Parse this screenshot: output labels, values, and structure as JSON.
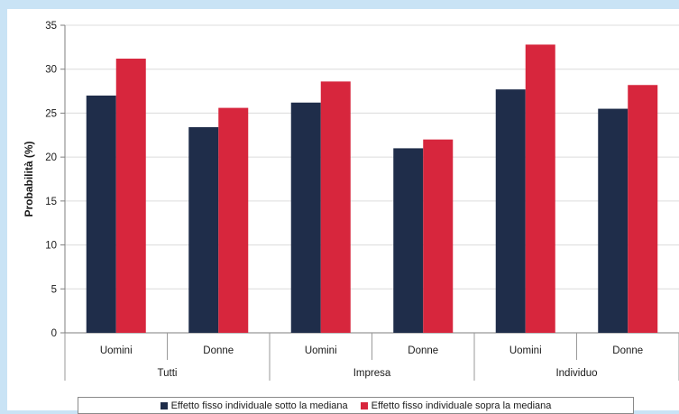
{
  "chart_data": {
    "type": "bar",
    "ylabel": "Probabilità (%)",
    "ylim": [
      0,
      35
    ],
    "yticks": [
      0,
      5,
      10,
      15,
      20,
      25,
      30,
      35
    ],
    "grid": true,
    "legend_position": "bottom",
    "groups": [
      {
        "label": "Tutti",
        "categories": [
          "Uomini",
          "Donne"
        ]
      },
      {
        "label": "Impresa",
        "categories": [
          "Uomini",
          "Donne"
        ]
      },
      {
        "label": "Individuo",
        "categories": [
          "Uomini",
          "Donne"
        ]
      }
    ],
    "categories": [
      "Uomini",
      "Donne",
      "Uomini",
      "Donne",
      "Uomini",
      "Donne"
    ],
    "series": [
      {
        "name": "Effetto fisso individuale sotto la mediana",
        "color": "#1f2d4a",
        "values": [
          27.0,
          23.4,
          26.2,
          21.0,
          27.7,
          25.5
        ]
      },
      {
        "name": "Effetto fisso individuale sopra la mediana",
        "color": "#d7263d",
        "values": [
          31.2,
          25.6,
          28.6,
          22.0,
          32.8,
          28.2
        ]
      }
    ]
  }
}
